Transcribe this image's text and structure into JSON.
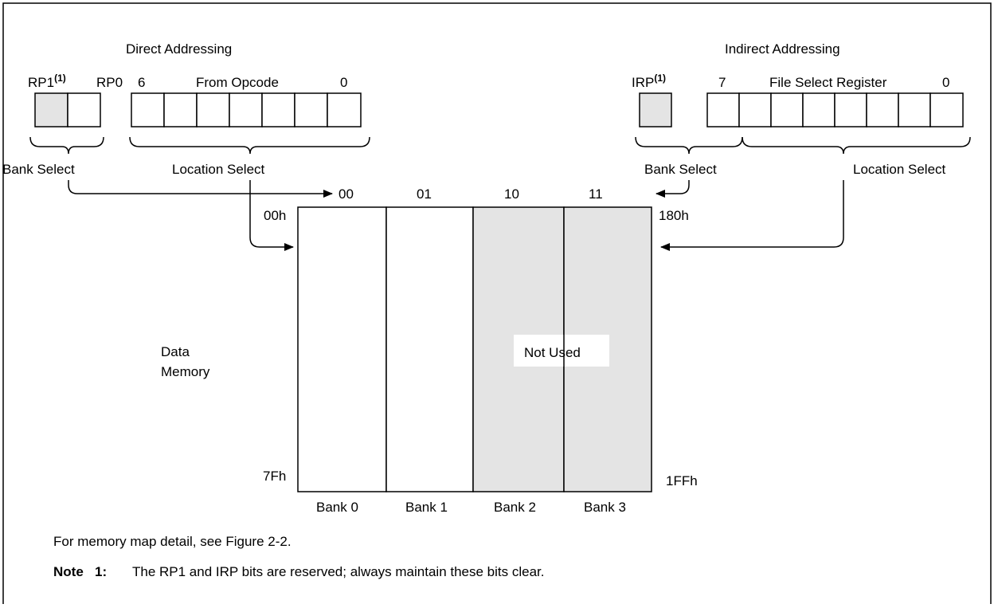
{
  "direct": {
    "title": "Direct Addressing",
    "rp1_label": "RP1",
    "rp1_sup": "(1)",
    "rp0_label": "RP0",
    "opcode_high_bit": "6",
    "opcode_label": "From Opcode",
    "opcode_low_bit": "0",
    "bank_select_label": "Bank Select",
    "location_select_label": "Location Select"
  },
  "indirect": {
    "title": "Indirect Addressing",
    "irp_label": "IRP",
    "irp_sup": "(1)",
    "fsr_high_bit": "7",
    "fsr_label": "File Select Register",
    "fsr_low_bit": "0",
    "bank_select_label": "Bank Select",
    "location_select_label": "Location Select"
  },
  "memory": {
    "bank_codes": [
      "00",
      "01",
      "10",
      "11"
    ],
    "bank_names": [
      "Bank 0",
      "Bank 1",
      "Bank 2",
      "Bank 3"
    ],
    "addr_top_left": "00h",
    "addr_bottom_left": "7Fh",
    "addr_top_right": "180h",
    "addr_bottom_right": "1FFh",
    "data_memory_line1": "Data",
    "data_memory_line2": "Memory",
    "not_used_label": "Not Used"
  },
  "footer": {
    "detail_note": "For memory map detail, see Figure 2-2.",
    "note_label": "Note",
    "note_number": "1:",
    "note_text": "The RP1 and IRP bits are reserved; always maintain these bits clear."
  },
  "colors": {
    "reserved_fill": "#e4e4e4",
    "line": "#000000"
  }
}
